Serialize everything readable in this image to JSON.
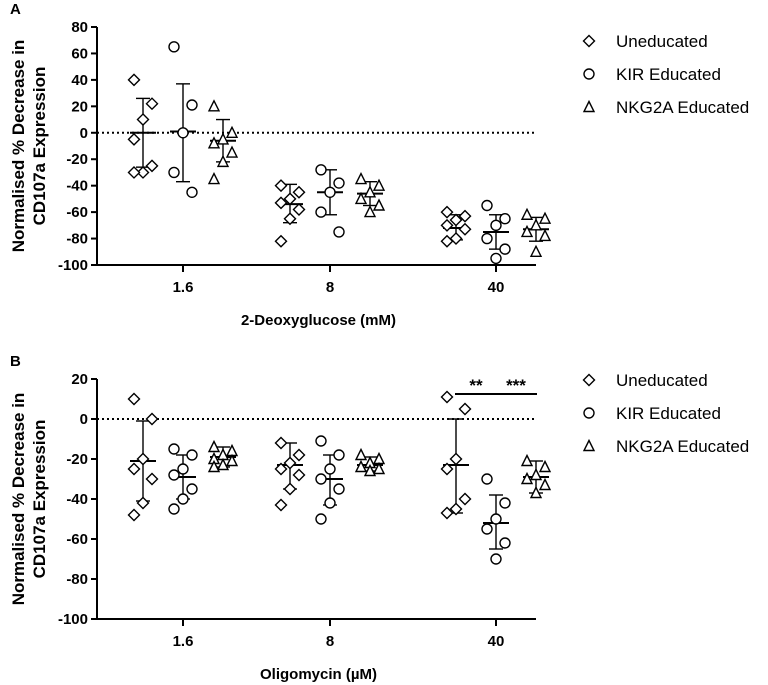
{
  "colors": {
    "ink": "#000000",
    "background": "#ffffff"
  },
  "chart_data": [
    {
      "panel": "A",
      "type": "scatter",
      "xlabel": "2-Deoxyglucose (mM)",
      "ylabel_lines": [
        "Normalised % Decrease in",
        "CD107a Expression"
      ],
      "categories": [
        "1.6",
        "8",
        "40"
      ],
      "ylim": [
        -100,
        80
      ],
      "yticks": [
        "80",
        "60",
        "40",
        "20",
        "0",
        "-20",
        "-40",
        "-60",
        "-80",
        "-100"
      ],
      "reference_line": 0,
      "legend": [
        "Uneducated",
        "KIR Educated",
        "NKG2A Educated"
      ],
      "series": [
        {
          "name": "Uneducated",
          "marker": "diamond",
          "groups": [
            {
              "points": [
                40,
                22,
                10,
                -5,
                -25,
                -30,
                -30
              ],
              "mean": 0,
              "sd_upper": 26,
              "sd_lower": -26
            },
            {
              "points": [
                -40,
                -45,
                -50,
                -53,
                -58,
                -65,
                -82
              ],
              "mean": -54,
              "sd_upper": -39,
              "sd_lower": -68
            },
            {
              "points": [
                -60,
                -63,
                -66,
                -70,
                -73,
                -80,
                -82
              ],
              "mean": -72,
              "sd_upper": -62,
              "sd_lower": -81
            }
          ]
        },
        {
          "name": "KIR Educated",
          "marker": "circle",
          "groups": [
            {
              "points": [
                65,
                21,
                0,
                -30,
                -45
              ],
              "mean": 1,
              "sd_upper": 37,
              "sd_lower": -37
            },
            {
              "points": [
                -28,
                -38,
                -45,
                -60,
                -75
              ],
              "mean": -45,
              "sd_upper": -28,
              "sd_lower": -62
            },
            {
              "points": [
                -55,
                -65,
                -70,
                -80,
                -88,
                -95
              ],
              "mean": -75,
              "sd_upper": -62,
              "sd_lower": -88
            }
          ]
        },
        {
          "name": "NKG2A Educated",
          "marker": "triangle",
          "groups": [
            {
              "points": [
                20,
                0,
                -5,
                -8,
                -15,
                -22,
                -35
              ],
              "mean": -6,
              "sd_upper": 10,
              "sd_lower": -22
            },
            {
              "points": [
                -35,
                -40,
                -45,
                -50,
                -55,
                -60
              ],
              "mean": -46,
              "sd_upper": -37,
              "sd_lower": -55
            },
            {
              "points": [
                -62,
                -65,
                -70,
                -75,
                -78,
                -90
              ],
              "mean": -73,
              "sd_upper": -64,
              "sd_lower": -82
            }
          ]
        }
      ],
      "annotations": []
    },
    {
      "panel": "B",
      "type": "scatter",
      "xlabel": "Oligomycin (µM)",
      "ylabel_lines": [
        "Normalised % Decrease in",
        "CD107a Expression"
      ],
      "categories": [
        "1.6",
        "8",
        "40"
      ],
      "ylim": [
        -100,
        20
      ],
      "yticks": [
        "20",
        "0",
        "-20",
        "-40",
        "-60",
        "-80",
        "-100"
      ],
      "reference_line": 0,
      "legend": [
        "Uneducated",
        "KIR Educated",
        "NKG2A Educated"
      ],
      "series": [
        {
          "name": "Uneducated",
          "marker": "diamond",
          "groups": [
            {
              "points": [
                10,
                0,
                -20,
                -25,
                -30,
                -42,
                -48
              ],
              "mean": -21,
              "sd_upper": -1,
              "sd_lower": -41
            },
            {
              "points": [
                -12,
                -18,
                -22,
                -25,
                -28,
                -35,
                -43
              ],
              "mean": -23,
              "sd_upper": -12,
              "sd_lower": -35
            },
            {
              "points": [
                11,
                5,
                -20,
                -25,
                -40,
                -45,
                -47
              ],
              "mean": -23,
              "sd_upper": 0,
              "sd_lower": -47
            }
          ]
        },
        {
          "name": "KIR Educated",
          "marker": "circle",
          "groups": [
            {
              "points": [
                -15,
                -18,
                -25,
                -28,
                -35,
                -40,
                -45
              ],
              "mean": -29,
              "sd_upper": -18,
              "sd_lower": -40
            },
            {
              "points": [
                -11,
                -18,
                -25,
                -30,
                -35,
                -42,
                -50
              ],
              "mean": -30,
              "sd_upper": -18,
              "sd_lower": -43
            },
            {
              "points": [
                -30,
                -42,
                -50,
                -55,
                -62,
                -70
              ],
              "mean": -52,
              "sd_upper": -38,
              "sd_lower": -65
            }
          ]
        },
        {
          "name": "NKG2A Educated",
          "marker": "triangle",
          "groups": [
            {
              "points": [
                -14,
                -16,
                -18,
                -20,
                -21,
                -23,
                -24
              ],
              "mean": -19,
              "sd_upper": -14,
              "sd_lower": -24
            },
            {
              "points": [
                -18,
                -20,
                -22,
                -24,
                -25,
                -26
              ],
              "mean": -23,
              "sd_upper": -19,
              "sd_lower": -26
            },
            {
              "points": [
                -21,
                -24,
                -28,
                -30,
                -33,
                -37
              ],
              "mean": -29,
              "sd_upper": -21,
              "sd_lower": -37
            }
          ]
        }
      ],
      "annotations": [
        {
          "text": "**",
          "category": "40",
          "from_series": 0,
          "to_series": 1,
          "y": 21
        },
        {
          "text": "***",
          "category": "40",
          "from_series": 1,
          "to_series": 2,
          "y": 21
        }
      ]
    }
  ]
}
